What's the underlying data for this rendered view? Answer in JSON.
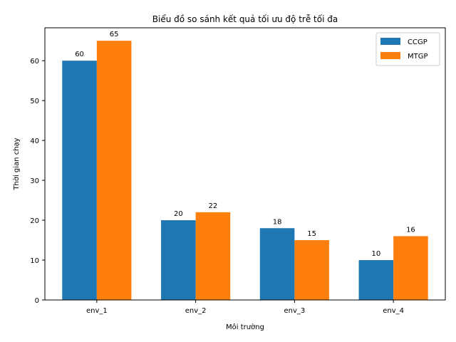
{
  "chart_data": {
    "type": "bar",
    "title": "Biểu đồ so sánh kết quả tối ưu độ trễ tối đa",
    "xlabel": "Môi trường",
    "ylabel": "Thời gian chạy",
    "categories": [
      "env_1",
      "env_2",
      "env_3",
      "env_4"
    ],
    "series": [
      {
        "name": "CCGP",
        "values": [
          60,
          20,
          18,
          10
        ],
        "color": "#1f77b4"
      },
      {
        "name": "MTGP",
        "values": [
          65,
          22,
          15,
          16
        ],
        "color": "#ff7f0e"
      }
    ],
    "ylim": [
      0,
      68.25
    ],
    "yticks": [
      0,
      10,
      20,
      30,
      40,
      50,
      60
    ],
    "grid": false,
    "legend_position": "top-right",
    "data_labels": true
  }
}
